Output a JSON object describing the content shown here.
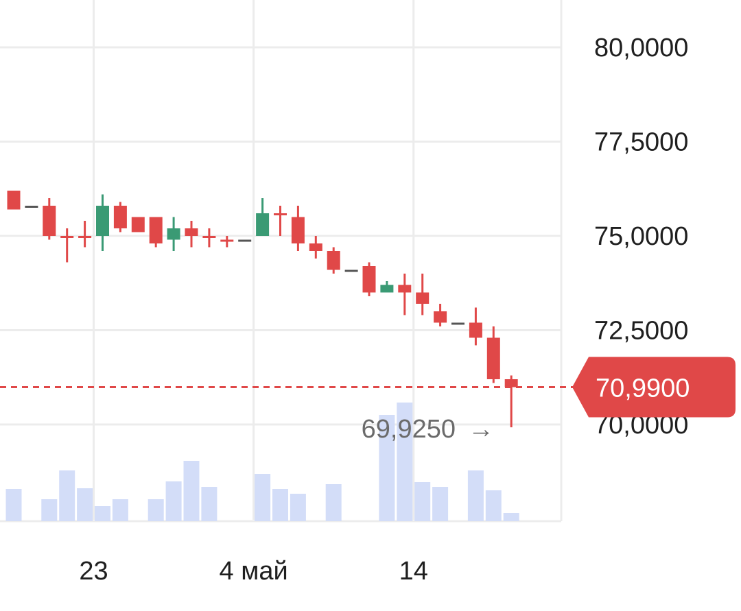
{
  "chart_data": {
    "type": "candlestick",
    "y_axis": {
      "ylim": [
        67.85,
        81.25
      ],
      "ticks": [
        "80,0000",
        "77,5000",
        "75,0000",
        "72,5000",
        "70,0000"
      ],
      "tick_values": [
        80.0,
        77.5,
        75.0,
        72.5,
        70.0
      ],
      "position": "right"
    },
    "x_axis": {
      "ticks": [
        "23",
        "4 май",
        "14"
      ],
      "tick_index": [
        4.5,
        13.5,
        22.5
      ]
    },
    "grid": true,
    "colors": {
      "up": "#3a9a74",
      "down": "#e04848",
      "volume": "#d3ddf8",
      "grid": "#ececec",
      "last_price": "#e04848"
    },
    "candles": [
      {
        "o": 76.2,
        "h": 76.2,
        "l": 75.7,
        "c": 75.7
      },
      {
        "o": 75.8,
        "h": 75.8,
        "l": 75.8,
        "c": 75.8
      },
      {
        "o": 75.8,
        "h": 76.0,
        "l": 74.9,
        "c": 75.0
      },
      {
        "o": 75.0,
        "h": 75.2,
        "l": 74.3,
        "c": 75.0
      },
      {
        "o": 75.0,
        "h": 75.4,
        "l": 74.7,
        "c": 75.0
      },
      {
        "o": 75.0,
        "h": 76.1,
        "l": 74.6,
        "c": 75.8
      },
      {
        "o": 75.8,
        "h": 75.9,
        "l": 75.1,
        "c": 75.2
      },
      {
        "o": 75.5,
        "h": 75.5,
        "l": 75.1,
        "c": 75.1
      },
      {
        "o": 75.5,
        "h": 75.5,
        "l": 74.7,
        "c": 74.8
      },
      {
        "o": 74.9,
        "h": 75.5,
        "l": 74.6,
        "c": 75.2
      },
      {
        "o": 75.2,
        "h": 75.4,
        "l": 74.7,
        "c": 75.0
      },
      {
        "o": 75.0,
        "h": 75.2,
        "l": 74.7,
        "c": 75.0
      },
      {
        "o": 74.9,
        "h": 75.0,
        "l": 74.7,
        "c": 74.9
      },
      {
        "o": 74.9,
        "h": 74.9,
        "l": 74.9,
        "c": 74.9
      },
      {
        "o": 75.0,
        "h": 76.0,
        "l": 75.0,
        "c": 75.6
      },
      {
        "o": 75.6,
        "h": 75.8,
        "l": 75.0,
        "c": 75.6
      },
      {
        "o": 75.5,
        "h": 75.8,
        "l": 74.6,
        "c": 74.8
      },
      {
        "o": 74.8,
        "h": 75.0,
        "l": 74.4,
        "c": 74.6
      },
      {
        "o": 74.6,
        "h": 74.7,
        "l": 74.0,
        "c": 74.1
      },
      {
        "o": 74.1,
        "h": 74.1,
        "l": 74.1,
        "c": 74.1
      },
      {
        "o": 74.2,
        "h": 74.3,
        "l": 73.4,
        "c": 73.5
      },
      {
        "o": 73.5,
        "h": 73.8,
        "l": 73.5,
        "c": 73.7
      },
      {
        "o": 73.7,
        "h": 74.0,
        "l": 72.9,
        "c": 73.5
      },
      {
        "o": 73.5,
        "h": 74.0,
        "l": 72.9,
        "c": 73.2
      },
      {
        "o": 73.0,
        "h": 73.2,
        "l": 72.6,
        "c": 72.7
      },
      {
        "o": 72.7,
        "h": 72.7,
        "l": 72.7,
        "c": 72.7
      },
      {
        "o": 72.7,
        "h": 73.1,
        "l": 72.1,
        "c": 72.3
      },
      {
        "o": 72.3,
        "h": 72.6,
        "l": 71.1,
        "c": 71.2
      },
      {
        "o": 71.2,
        "h": 71.3,
        "l": 69.925,
        "c": 70.99
      }
    ],
    "volume": [
      0.47,
      0,
      0.32,
      0.74,
      0.48,
      0.22,
      0.32,
      0,
      0.32,
      0.58,
      0.88,
      0.5,
      0,
      0,
      0.69,
      0.47,
      0.4,
      0,
      0.54,
      0,
      0,
      1.55,
      1.73,
      0.57,
      0.5,
      0,
      0.74,
      0.45,
      0.12
    ],
    "annotations": {
      "low_label": "69,9250",
      "low_value": 69.925,
      "low_arrow": "→",
      "last_price_label": "70,9900",
      "last_price_value": 70.99
    }
  }
}
